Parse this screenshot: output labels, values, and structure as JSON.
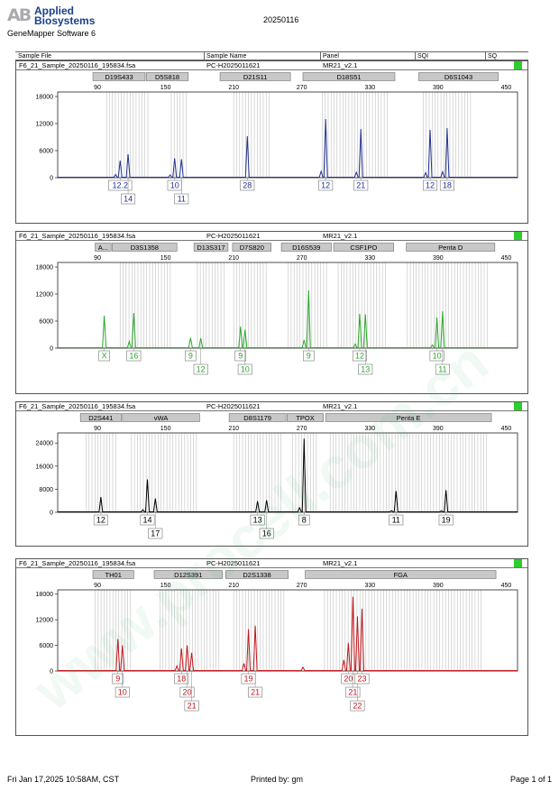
{
  "header": {
    "logo_mark": "AB",
    "logo_line1": "Applied",
    "logo_line2": "Biosystems",
    "software": "GeneMapper Software 6",
    "date": "20250116"
  },
  "columns": [
    "Sample File",
    "Sample Name",
    "Panel",
    "SQI",
    "SQ"
  ],
  "watermark": "www.procell.com.cn",
  "colors": {
    "blue": "#22318f",
    "green": "#29a829",
    "black": "#000000",
    "red": "#c0171c",
    "sq_ok": "#2ecc2e",
    "marker_fill": "#c8c8c8",
    "bin_line": "#c0c0c0"
  },
  "panels": [
    {
      "sample_file": "F6_21_Sample_20250116_195834.fsa",
      "sample_name": "PC-H2025011621",
      "panel": "MR21_v2.1",
      "color_key": "blue",
      "markers": [
        {
          "name": "D19S433",
          "start": 86,
          "end": 132
        },
        {
          "name": "D5S818",
          "start": 133,
          "end": 170
        },
        {
          "name": "D21S11",
          "start": 198,
          "end": 260
        },
        {
          "name": "D18S51",
          "start": 271,
          "end": 352
        },
        {
          "name": "D6S1043",
          "start": 373,
          "end": 443
        }
      ],
      "yticks": [
        0,
        6000,
        12000,
        18000
      ],
      "ymax": 19000,
      "bins": [
        [
          98,
          135
        ],
        [
          155,
          169
        ],
        [
          210,
          243
        ],
        [
          288,
          347
        ],
        [
          377,
          420
        ]
      ],
      "alleles": [
        {
          "pos": 110,
          "h": 3800,
          "labels": [
            "12.2"
          ]
        },
        {
          "pos": 117,
          "h": 5200,
          "labels": [
            "14"
          ]
        },
        {
          "pos": 158,
          "h": 4300,
          "labels": [
            "10"
          ]
        },
        {
          "pos": 164,
          "h": 4100,
          "labels": [
            "11"
          ]
        },
        {
          "pos": 222,
          "h": 9200,
          "labels": [
            "28"
          ]
        },
        {
          "pos": 291,
          "h": 13000,
          "labels": [
            "12"
          ]
        },
        {
          "pos": 322,
          "h": 10800,
          "labels": [
            "21"
          ]
        },
        {
          "pos": 383,
          "h": 10600,
          "labels": [
            "12"
          ]
        },
        {
          "pos": 398,
          "h": 11000,
          "labels": [
            "18"
          ]
        }
      ],
      "stutters": [
        {
          "pos": 106,
          "h": 700
        },
        {
          "pos": 154,
          "h": 600
        },
        {
          "pos": 287,
          "h": 1400
        },
        {
          "pos": 318,
          "h": 1200
        },
        {
          "pos": 379,
          "h": 1100
        },
        {
          "pos": 394,
          "h": 1300
        }
      ]
    },
    {
      "sample_file": "F6_21_Sample_20250116_195834.fsa",
      "sample_name": "PC-H2025011621",
      "panel": "MR21_v2.1",
      "color_key": "green",
      "markers": [
        {
          "name": "A...",
          "start": 88,
          "end": 102
        },
        {
          "name": "D3S1358",
          "start": 103,
          "end": 160
        },
        {
          "name": "D13S317",
          "start": 175,
          "end": 205
        },
        {
          "name": "D7S820",
          "start": 209,
          "end": 243
        },
        {
          "name": "D16S539",
          "start": 252,
          "end": 296
        },
        {
          "name": "CSF1PO",
          "start": 298,
          "end": 351
        },
        {
          "name": "Penta D",
          "start": 362,
          "end": 440
        }
      ],
      "yticks": [
        0,
        6000,
        12000,
        18000
      ],
      "ymax": 19000,
      "bins": [
        [
          110,
          155
        ],
        [
          178,
          202
        ],
        [
          210,
          240
        ],
        [
          258,
          292
        ],
        [
          302,
          345
        ],
        [
          363,
          435
        ]
      ],
      "alleles": [
        {
          "pos": 96,
          "h": 7200,
          "labels": [
            "X"
          ]
        },
        {
          "pos": 122,
          "h": 7800,
          "labels": [
            "16"
          ]
        },
        {
          "pos": 172,
          "h": 2300,
          "labels": [
            "9"
          ]
        },
        {
          "pos": 181,
          "h": 2200,
          "labels": [
            "12"
          ]
        },
        {
          "pos": 216,
          "h": 4800,
          "labels": [
            "9"
          ]
        },
        {
          "pos": 220,
          "h": 4100,
          "labels": [
            "10"
          ]
        },
        {
          "pos": 276,
          "h": 12800,
          "labels": [
            "9"
          ]
        },
        {
          "pos": 321,
          "h": 7600,
          "labels": [
            "12"
          ]
        },
        {
          "pos": 326,
          "h": 7500,
          "labels": [
            "13"
          ]
        },
        {
          "pos": 389,
          "h": 6800,
          "labels": [
            "10"
          ]
        },
        {
          "pos": 394,
          "h": 8200,
          "labels": [
            "11"
          ]
        }
      ],
      "stutters": [
        {
          "pos": 118,
          "h": 1500
        },
        {
          "pos": 272,
          "h": 1800
        },
        {
          "pos": 317,
          "h": 900
        },
        {
          "pos": 385,
          "h": 700
        }
      ]
    },
    {
      "sample_file": "F6_21_Sample_20250116_195834.fsa",
      "sample_name": "PC-H2025011621",
      "panel": "MR21_v2.1",
      "color_key": "black",
      "markers": [
        {
          "name": "D2S441",
          "start": 75,
          "end": 111
        },
        {
          "name": "vWA",
          "start": 112,
          "end": 180
        },
        {
          "name": "D8S1179",
          "start": 206,
          "end": 256
        },
        {
          "name": "TPOX",
          "start": 257,
          "end": 289
        },
        {
          "name": "Penta E",
          "start": 291,
          "end": 437
        }
      ],
      "yticks": [
        0,
        8000,
        16000,
        24000
      ],
      "ymax": 27500,
      "bins": [
        [
          80,
          108
        ],
        [
          120,
          178
        ],
        [
          210,
          253
        ],
        [
          262,
          285
        ],
        [
          295,
          433
        ]
      ],
      "alleles": [
        {
          "pos": 93,
          "h": 5300,
          "labels": [
            "12"
          ]
        },
        {
          "pos": 134,
          "h": 11400,
          "labels": [
            "14"
          ]
        },
        {
          "pos": 141,
          "h": 4800,
          "labels": [
            "17"
          ]
        },
        {
          "pos": 231,
          "h": 3900,
          "labels": [
            "13"
          ]
        },
        {
          "pos": 239,
          "h": 4200,
          "labels": [
            "16"
          ]
        },
        {
          "pos": 272,
          "h": 25500,
          "labels": [
            "8"
          ]
        },
        {
          "pos": 353,
          "h": 7400,
          "labels": [
            "11"
          ]
        },
        {
          "pos": 397,
          "h": 7700,
          "labels": [
            "19"
          ]
        }
      ],
      "stutters": [
        {
          "pos": 130,
          "h": 900
        },
        {
          "pos": 268,
          "h": 1600
        },
        {
          "pos": 349,
          "h": 600
        },
        {
          "pos": 393,
          "h": 500
        }
      ]
    },
    {
      "sample_file": "F6_21_Sample_20250116_195834.fsa",
      "sample_name": "PC-H2025011621",
      "panel": "MR21_v2.1",
      "color_key": "red",
      "markers": [
        {
          "name": "TH01",
          "start": 86,
          "end": 122
        },
        {
          "name": "D12S391",
          "start": 140,
          "end": 200
        },
        {
          "name": "D2S1338",
          "start": 203,
          "end": 258
        },
        {
          "name": "FGA",
          "start": 273,
          "end": 441
        }
      ],
      "yticks": [
        0,
        6000,
        12000,
        18000
      ],
      "ymax": 19000,
      "bins": [
        [
          88,
          120
        ],
        [
          145,
          198
        ],
        [
          210,
          255
        ],
        [
          290,
          430
        ]
      ],
      "alleles": [
        {
          "pos": 108,
          "h": 7500,
          "labels": [
            "9"
          ]
        },
        {
          "pos": 112,
          "h": 6000,
          "labels": [
            "10"
          ]
        },
        {
          "pos": 164,
          "h": 5300,
          "labels": [
            "18"
          ]
        },
        {
          "pos": 169,
          "h": 6000,
          "labels": [
            "20"
          ]
        },
        {
          "pos": 173,
          "h": 4300,
          "labels": [
            "21"
          ]
        },
        {
          "pos": 223,
          "h": 9800,
          "labels": [
            "19"
          ]
        },
        {
          "pos": 229,
          "h": 10600,
          "labels": [
            "21"
          ]
        },
        {
          "pos": 311,
          "h": 6600,
          "labels": [
            "20"
          ]
        },
        {
          "pos": 315,
          "h": 17400,
          "labels": [
            "21"
          ]
        },
        {
          "pos": 319,
          "h": 12800,
          "labels": [
            "22"
          ]
        },
        {
          "pos": 323,
          "h": 14600,
          "labels": [
            "23"
          ]
        }
      ],
      "stutters": [
        {
          "pos": 160,
          "h": 1200
        },
        {
          "pos": 219,
          "h": 1800
        },
        {
          "pos": 307,
          "h": 2600
        },
        {
          "pos": 271,
          "h": 900
        }
      ]
    }
  ],
  "chart_data": {
    "type": "line",
    "x_axis_ticks": [
      90,
      150,
      210,
      270,
      330,
      390,
      450
    ],
    "xlim": [
      55,
      460
    ],
    "series": [
      {
        "color": "blue",
        "alleles": {
          "D19S433": [
            "12.2",
            "14"
          ],
          "D5S818": [
            "10",
            "11"
          ],
          "D21S11": [
            "28"
          ],
          "D18S51": [
            "12",
            "21"
          ],
          "D6S1043": [
            "12",
            "18"
          ]
        }
      },
      {
        "color": "green",
        "alleles": {
          "AMEL": [
            "X"
          ],
          "D3S1358": [
            "16"
          ],
          "D13S317": [
            "9",
            "12"
          ],
          "D7S820": [
            "9",
            "10"
          ],
          "D16S539": [
            "9"
          ],
          "CSF1PO": [
            "12",
            "13"
          ],
          "Penta D": [
            "10",
            "11"
          ]
        }
      },
      {
        "color": "black",
        "alleles": {
          "D2S441": [
            "12"
          ],
          "vWA": [
            "14",
            "17"
          ],
          "D8S1179": [
            "13",
            "16"
          ],
          "TPOX": [
            "8"
          ],
          "Penta E": [
            "11",
            "19"
          ]
        }
      },
      {
        "color": "red",
        "alleles": {
          "TH01": [
            "9",
            "10"
          ],
          "D12S391": [
            "18",
            "20",
            "21"
          ],
          "D2S1338": [
            "19",
            "21"
          ],
          "FGA": [
            "20",
            "21",
            "22",
            "23"
          ]
        }
      }
    ]
  },
  "footer": {
    "datetime": "Fri Jan 17,2025 10:58AM, CST",
    "printed_by": "Printed by: gm",
    "page": "Page 1 of 1"
  }
}
